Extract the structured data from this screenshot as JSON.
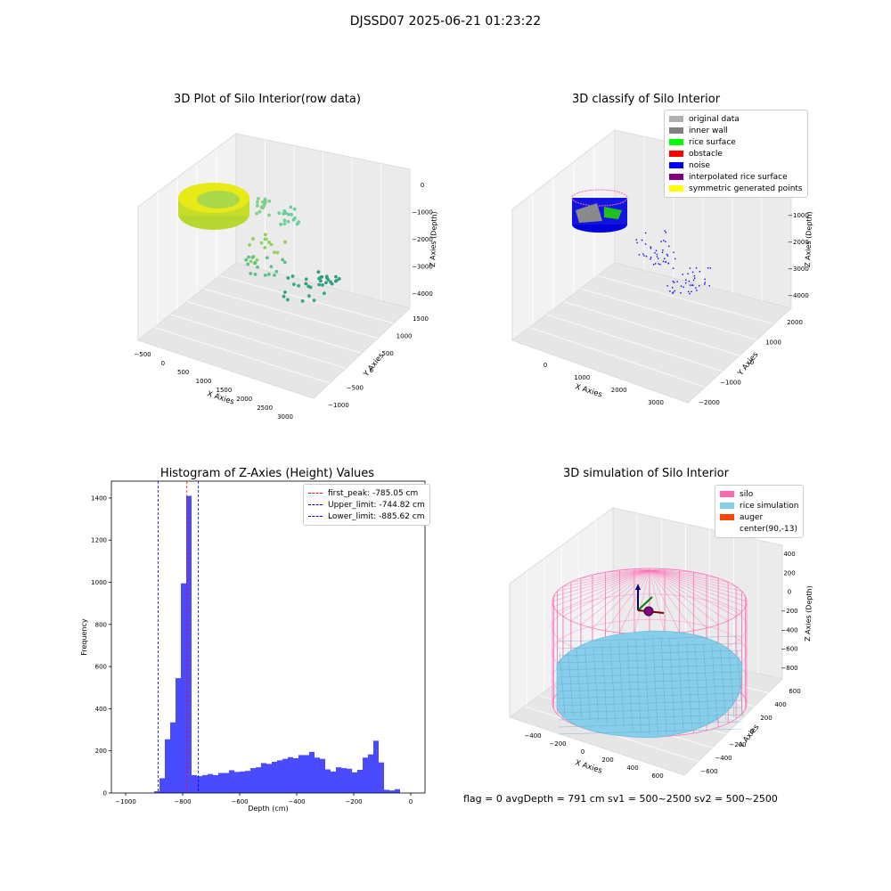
{
  "suptitle": "DJSSD07 2025-06-21 01:23:22",
  "status_text": "flag = 0     avgDepth = 791 cm  sv1 = 500~2500  sv2 = 500~2500",
  "chart_data": [
    {
      "type": "scatter",
      "projection": "3d",
      "title": "3D Plot of Silo Interior(row data)",
      "xlabel": "X Axies",
      "ylabel": "Y Axies",
      "zlabel": "Z Axies (Depth)",
      "x_ticks": [
        "−500",
        "0",
        "500",
        "1000",
        "1500",
        "2000",
        "2500",
        "3000"
      ],
      "y_ticks": [
        "1500",
        "1000",
        "500",
        "0",
        "−500",
        "−1000"
      ],
      "z_ticks": [
        "0",
        "−1000",
        "−2000",
        "−3000",
        "−4000"
      ],
      "colormap": "viridis-yellow",
      "grid": true
    },
    {
      "type": "scatter",
      "projection": "3d",
      "title": "3D classify of Silo Interior",
      "xlabel": "X Axies",
      "ylabel": "Y Axies",
      "zlabel": "Z Axies (Depth)",
      "x_ticks": [
        "0",
        "1000",
        "2000",
        "3000"
      ],
      "y_ticks": [
        "2000",
        "1000",
        "0",
        "−1000",
        "−2000"
      ],
      "z_ticks": [
        "0",
        "−1000",
        "−2000",
        "−3000",
        "−4000"
      ],
      "legend": [
        {
          "label": "original data",
          "color": "#b0b0b0"
        },
        {
          "label": "inner wall",
          "color": "#808080"
        },
        {
          "label": "rice surface",
          "color": "#00ff00"
        },
        {
          "label": "obstacle",
          "color": "#ff0000"
        },
        {
          "label": "noise",
          "color": "#0000ff"
        },
        {
          "label": "interpolated rice surface",
          "color": "#800080"
        },
        {
          "label": "symmetric generated points",
          "color": "#ffff00"
        }
      ],
      "legend_position": "top-right",
      "grid": true
    },
    {
      "type": "bar",
      "title": "Histogram of Z-Axies (Height) Values",
      "xlabel": "Depth (cm)",
      "ylabel": "Frequency",
      "xlim": [
        -1050,
        50
      ],
      "ylim": [
        0,
        1480
      ],
      "x_ticks": [
        -1000,
        -800,
        -600,
        -400,
        -200,
        0
      ],
      "x_tick_labels": [
        "−1000",
        "−800",
        "−600",
        "−400",
        "−200",
        "0"
      ],
      "y_ticks": [
        0,
        200,
        400,
        600,
        800,
        1000,
        1200,
        1400
      ],
      "bin_start": -900,
      "bin_width": 18.75,
      "values": [
        8,
        70,
        255,
        335,
        545,
        995,
        1410,
        85,
        80,
        85,
        90,
        85,
        95,
        95,
        108,
        100,
        102,
        105,
        118,
        122,
        142,
        138,
        148,
        155,
        162,
        170,
        165,
        180,
        180,
        195,
        168,
        162,
        112,
        102,
        122,
        118,
        115,
        98,
        110,
        168,
        183,
        248,
        145,
        15,
        12,
        18
      ],
      "bar_color": "#4a4aff",
      "lines": [
        {
          "label": "first_peak: -785.05 cm",
          "x": -785.05,
          "color": "#ff0000"
        },
        {
          "label": "Upper_limit: -744.82 cm",
          "x": -744.82,
          "color": "#0000cc"
        },
        {
          "label": "Lower_limit: -885.62 cm",
          "x": -885.62,
          "color": "#0000cc"
        }
      ],
      "legend_position": "top-right"
    },
    {
      "type": "surface",
      "projection": "3d",
      "title": "3D simulation of Silo Interior",
      "xlabel": "X Axies",
      "ylabel": "Y Axies",
      "zlabel": "Z Axies (Depth)",
      "x_ticks": [
        "−400",
        "−200",
        "0",
        "200",
        "400",
        "600"
      ],
      "y_ticks": [
        "600",
        "400",
        "200",
        "0",
        "−200",
        "−400",
        "−600"
      ],
      "z_ticks": [
        "400",
        "200",
        "0",
        "−200",
        "−400",
        "−600",
        "−800"
      ],
      "legend": [
        {
          "label": "silo",
          "color": "#ff69b4"
        },
        {
          "label": "rice simulation",
          "color": "#87ceeb"
        },
        {
          "label": "auger",
          "color": "#ff4500"
        },
        {
          "label": "center(90,-13)",
          "color": ""
        }
      ],
      "legend_position": "top-right",
      "center_point": [
        90,
        -13
      ]
    }
  ]
}
